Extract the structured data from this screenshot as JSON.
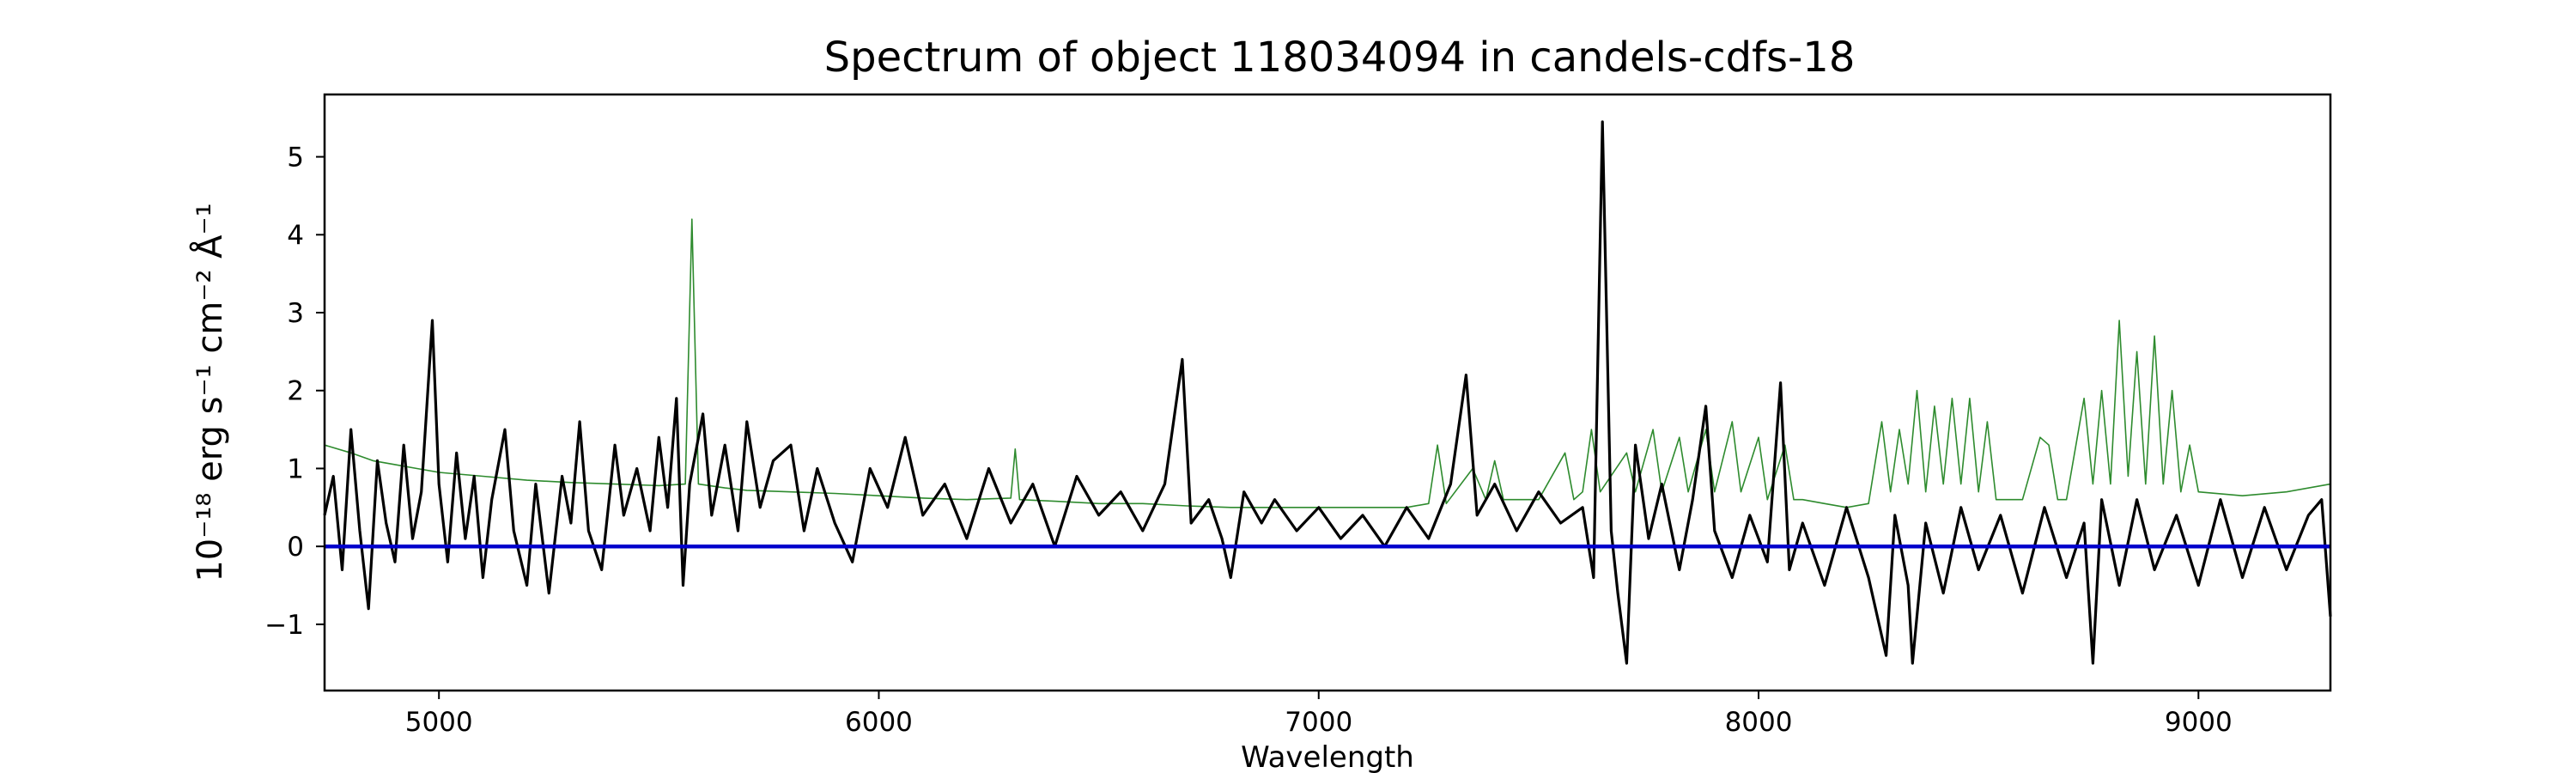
{
  "chart_data": {
    "type": "line",
    "title": "Spectrum of object 118034094 in candels-cdfs-18",
    "xlabel": "Wavelength",
    "ylabel": "10⁻¹⁸ erg s⁻¹ cm⁻² Å⁻¹",
    "xlim": [
      4740,
      9300
    ],
    "ylim": [
      -1.85,
      5.8
    ],
    "x_ticks": [
      5000,
      6000,
      7000,
      8000,
      9000
    ],
    "y_ticks": [
      -1,
      0,
      1,
      2,
      3,
      4,
      5
    ],
    "y_tick_labels": [
      "−1",
      "0",
      "1",
      "2",
      "3",
      "4",
      "5"
    ],
    "grid": false,
    "legend": "none",
    "colors": {
      "flux": "#000000",
      "noise": "#2e8b2e",
      "zero": "#0000cc"
    },
    "series": [
      {
        "role": "flux",
        "points": [
          [
            4740,
            0.4
          ],
          [
            4760,
            0.9
          ],
          [
            4780,
            -0.3
          ],
          [
            4800,
            1.5
          ],
          [
            4820,
            0.2
          ],
          [
            4840,
            -0.8
          ],
          [
            4860,
            1.1
          ],
          [
            4880,
            0.3
          ],
          [
            4900,
            -0.2
          ],
          [
            4920,
            1.3
          ],
          [
            4940,
            0.1
          ],
          [
            4960,
            0.7
          ],
          [
            4985,
            2.9
          ],
          [
            5000,
            0.8
          ],
          [
            5020,
            -0.2
          ],
          [
            5040,
            1.2
          ],
          [
            5060,
            0.1
          ],
          [
            5080,
            0.9
          ],
          [
            5100,
            -0.4
          ],
          [
            5120,
            0.6
          ],
          [
            5150,
            1.5
          ],
          [
            5170,
            0.2
          ],
          [
            5200,
            -0.5
          ],
          [
            5220,
            0.8
          ],
          [
            5250,
            -0.6
          ],
          [
            5280,
            0.9
          ],
          [
            5300,
            0.3
          ],
          [
            5320,
            1.6
          ],
          [
            5340,
            0.2
          ],
          [
            5370,
            -0.3
          ],
          [
            5400,
            1.3
          ],
          [
            5420,
            0.4
          ],
          [
            5450,
            1.0
          ],
          [
            5480,
            0.2
          ],
          [
            5500,
            1.4
          ],
          [
            5520,
            0.5
          ],
          [
            5540,
            1.9
          ],
          [
            5555,
            -0.5
          ],
          [
            5570,
            0.8
          ],
          [
            5600,
            1.7
          ],
          [
            5620,
            0.4
          ],
          [
            5650,
            1.3
          ],
          [
            5680,
            0.2
          ],
          [
            5700,
            1.6
          ],
          [
            5730,
            0.5
          ],
          [
            5760,
            1.1
          ],
          [
            5800,
            1.3
          ],
          [
            5830,
            0.2
          ],
          [
            5860,
            1.0
          ],
          [
            5900,
            0.3
          ],
          [
            5940,
            -0.2
          ],
          [
            5980,
            1.0
          ],
          [
            6020,
            0.5
          ],
          [
            6060,
            1.4
          ],
          [
            6100,
            0.4
          ],
          [
            6150,
            0.8
          ],
          [
            6200,
            0.1
          ],
          [
            6250,
            1.0
          ],
          [
            6300,
            0.3
          ],
          [
            6350,
            0.8
          ],
          [
            6400,
            0.0
          ],
          [
            6450,
            0.9
          ],
          [
            6500,
            0.4
          ],
          [
            6550,
            0.7
          ],
          [
            6600,
            0.2
          ],
          [
            6650,
            0.8
          ],
          [
            6690,
            2.4
          ],
          [
            6710,
            0.3
          ],
          [
            6750,
            0.6
          ],
          [
            6780,
            0.1
          ],
          [
            6800,
            -0.4
          ],
          [
            6830,
            0.7
          ],
          [
            6870,
            0.3
          ],
          [
            6900,
            0.6
          ],
          [
            6950,
            0.2
          ],
          [
            7000,
            0.5
          ],
          [
            7050,
            0.1
          ],
          [
            7100,
            0.4
          ],
          [
            7150,
            0.0
          ],
          [
            7200,
            0.5
          ],
          [
            7250,
            0.1
          ],
          [
            7300,
            0.8
          ],
          [
            7335,
            2.2
          ],
          [
            7360,
            0.4
          ],
          [
            7400,
            0.8
          ],
          [
            7450,
            0.2
          ],
          [
            7500,
            0.7
          ],
          [
            7550,
            0.3
          ],
          [
            7600,
            0.5
          ],
          [
            7625,
            -0.4
          ],
          [
            7645,
            5.45
          ],
          [
            7665,
            0.2
          ],
          [
            7680,
            -0.6
          ],
          [
            7700,
            -1.5
          ],
          [
            7720,
            1.3
          ],
          [
            7750,
            0.1
          ],
          [
            7780,
            0.8
          ],
          [
            7820,
            -0.3
          ],
          [
            7850,
            0.6
          ],
          [
            7880,
            1.8
          ],
          [
            7900,
            0.2
          ],
          [
            7940,
            -0.4
          ],
          [
            7980,
            0.4
          ],
          [
            8020,
            -0.2
          ],
          [
            8050,
            2.1
          ],
          [
            8070,
            -0.3
          ],
          [
            8100,
            0.3
          ],
          [
            8150,
            -0.5
          ],
          [
            8200,
            0.5
          ],
          [
            8250,
            -0.4
          ],
          [
            8290,
            -1.4
          ],
          [
            8310,
            0.4
          ],
          [
            8340,
            -0.5
          ],
          [
            8350,
            -1.5
          ],
          [
            8380,
            0.3
          ],
          [
            8420,
            -0.6
          ],
          [
            8460,
            0.5
          ],
          [
            8500,
            -0.3
          ],
          [
            8550,
            0.4
          ],
          [
            8600,
            -0.6
          ],
          [
            8650,
            0.5
          ],
          [
            8700,
            -0.4
          ],
          [
            8740,
            0.3
          ],
          [
            8760,
            -1.5
          ],
          [
            8780,
            0.6
          ],
          [
            8820,
            -0.5
          ],
          [
            8860,
            0.6
          ],
          [
            8900,
            -0.3
          ],
          [
            8950,
            0.4
          ],
          [
            9000,
            -0.5
          ],
          [
            9050,
            0.6
          ],
          [
            9100,
            -0.4
          ],
          [
            9150,
            0.5
          ],
          [
            9200,
            -0.3
          ],
          [
            9250,
            0.4
          ],
          [
            9280,
            0.6
          ],
          [
            9300,
            -0.9
          ]
        ]
      },
      {
        "role": "noise",
        "points": [
          [
            4740,
            1.3
          ],
          [
            4800,
            1.2
          ],
          [
            4850,
            1.1
          ],
          [
            4900,
            1.05
          ],
          [
            4950,
            1.0
          ],
          [
            5000,
            0.95
          ],
          [
            5100,
            0.9
          ],
          [
            5200,
            0.85
          ],
          [
            5300,
            0.82
          ],
          [
            5400,
            0.8
          ],
          [
            5500,
            0.78
          ],
          [
            5560,
            0.8
          ],
          [
            5575,
            4.2
          ],
          [
            5590,
            0.8
          ],
          [
            5650,
            0.75
          ],
          [
            5700,
            0.72
          ],
          [
            5800,
            0.7
          ],
          [
            5900,
            0.68
          ],
          [
            6000,
            0.65
          ],
          [
            6100,
            0.62
          ],
          [
            6200,
            0.6
          ],
          [
            6300,
            0.62
          ],
          [
            6310,
            1.25
          ],
          [
            6320,
            0.6
          ],
          [
            6400,
            0.58
          ],
          [
            6500,
            0.55
          ],
          [
            6600,
            0.55
          ],
          [
            6700,
            0.52
          ],
          [
            6800,
            0.5
          ],
          [
            6900,
            0.5
          ],
          [
            7000,
            0.5
          ],
          [
            7100,
            0.5
          ],
          [
            7200,
            0.5
          ],
          [
            7250,
            0.55
          ],
          [
            7270,
            1.3
          ],
          [
            7290,
            0.55
          ],
          [
            7350,
            1.0
          ],
          [
            7380,
            0.6
          ],
          [
            7400,
            1.1
          ],
          [
            7420,
            0.6
          ],
          [
            7450,
            0.6
          ],
          [
            7500,
            0.6
          ],
          [
            7560,
            1.2
          ],
          [
            7580,
            0.6
          ],
          [
            7600,
            0.7
          ],
          [
            7620,
            1.5
          ],
          [
            7640,
            0.7
          ],
          [
            7700,
            1.2
          ],
          [
            7720,
            0.7
          ],
          [
            7760,
            1.5
          ],
          [
            7780,
            0.7
          ],
          [
            7820,
            1.4
          ],
          [
            7840,
            0.7
          ],
          [
            7880,
            1.5
          ],
          [
            7900,
            0.7
          ],
          [
            7940,
            1.6
          ],
          [
            7960,
            0.7
          ],
          [
            8000,
            1.4
          ],
          [
            8020,
            0.6
          ],
          [
            8060,
            1.3
          ],
          [
            8080,
            0.6
          ],
          [
            8100,
            0.6
          ],
          [
            8150,
            0.55
          ],
          [
            8200,
            0.5
          ],
          [
            8250,
            0.55
          ],
          [
            8280,
            1.6
          ],
          [
            8300,
            0.7
          ],
          [
            8320,
            1.5
          ],
          [
            8340,
            0.8
          ],
          [
            8360,
            2.0
          ],
          [
            8380,
            0.7
          ],
          [
            8400,
            1.8
          ],
          [
            8420,
            0.8
          ],
          [
            8440,
            1.9
          ],
          [
            8460,
            0.8
          ],
          [
            8480,
            1.9
          ],
          [
            8500,
            0.7
          ],
          [
            8520,
            1.6
          ],
          [
            8540,
            0.6
          ],
          [
            8560,
            0.6
          ],
          [
            8600,
            0.6
          ],
          [
            8640,
            1.4
          ],
          [
            8660,
            1.3
          ],
          [
            8680,
            0.6
          ],
          [
            8700,
            0.6
          ],
          [
            8740,
            1.9
          ],
          [
            8760,
            0.8
          ],
          [
            8780,
            2.0
          ],
          [
            8800,
            0.8
          ],
          [
            8820,
            2.9
          ],
          [
            8840,
            0.9
          ],
          [
            8860,
            2.5
          ],
          [
            8880,
            0.8
          ],
          [
            8900,
            2.7
          ],
          [
            8920,
            0.8
          ],
          [
            8940,
            2.0
          ],
          [
            8960,
            0.7
          ],
          [
            8980,
            1.3
          ],
          [
            9000,
            0.7
          ],
          [
            9100,
            0.65
          ],
          [
            9200,
            0.7
          ],
          [
            9300,
            0.8
          ]
        ]
      },
      {
        "role": "zero",
        "points": [
          [
            4740,
            0
          ],
          [
            9300,
            0
          ]
        ]
      }
    ]
  }
}
